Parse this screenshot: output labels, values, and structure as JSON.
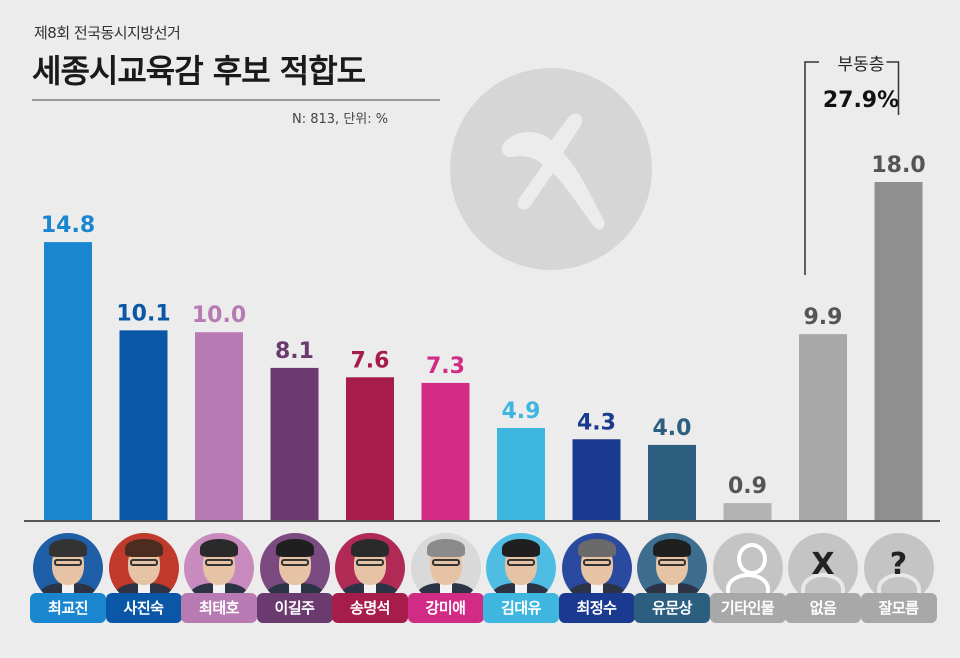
{
  "header": {
    "subtitle": "제8회 전국동시지방선거",
    "title": "세종시교육감  후보 적합도",
    "note": "N: 813, 단위: %"
  },
  "bracket": {
    "label": "부동층",
    "value": "27.9%"
  },
  "colors": {
    "background": "#ececec",
    "baseline": "#555555"
  },
  "chart_data": {
    "type": "bar",
    "title": "세종시교육감  후보 적합도",
    "ylim": [
      0,
      18.0
    ],
    "grid": false,
    "categories": [
      "최교진",
      "사진숙",
      "최태호",
      "이길주",
      "송명석",
      "강미애",
      "김대유",
      "최정수",
      "유문상",
      "기타인물",
      "없음",
      "잘모름"
    ],
    "values": [
      14.8,
      10.1,
      10.0,
      8.1,
      7.6,
      7.3,
      4.9,
      4.3,
      4.0,
      0.9,
      9.9,
      18.0
    ],
    "value_labels": [
      "14.8",
      "10.1",
      "10.0",
      "8.1",
      "7.6",
      "7.3",
      "4.9",
      "4.3",
      "4.0",
      "0.9",
      "9.9",
      "18.0"
    ],
    "bar_colors": [
      "#1a86d0",
      "#0a57a8",
      "#b77ab3",
      "#6b3a6e",
      "#a61c4a",
      "#d12b86",
      "#3fb6e0",
      "#1a3a8f",
      "#2c5e80",
      "#b3b3b3",
      "#a8a8a8",
      "#8f8f8f"
    ],
    "label_colors": [
      "#1a86d0",
      "#0a57a8",
      "#b77ab3",
      "#6b3a6e",
      "#a61c4a",
      "#d12b86",
      "#3fb6e0",
      "#1a3a8f",
      "#2c5e80",
      "#555555",
      "#555555",
      "#555555"
    ]
  },
  "candidates": [
    {
      "name": "최교진",
      "type": "person",
      "color": "#1a86d0",
      "bg": "#1f5fa8",
      "hair": "#333333"
    },
    {
      "name": "사진숙",
      "type": "person",
      "color": "#0a57a8",
      "bg": "#c0392b",
      "hair": "#4a2d1f"
    },
    {
      "name": "최태호",
      "type": "person",
      "color": "#b77ab3",
      "bg": "#c98ac0",
      "hair": "#2a2a2a"
    },
    {
      "name": "이길주",
      "type": "person",
      "color": "#6b3a6e",
      "bg": "#7a4a80",
      "hair": "#1f1f1f"
    },
    {
      "name": "송명석",
      "type": "person",
      "color": "#a61c4a",
      "bg": "#b02a55",
      "hair": "#2a2a2a"
    },
    {
      "name": "강미애",
      "type": "person",
      "color": "#d12b86",
      "bg": "#d9d9d9",
      "hair": "#8a8a8a"
    },
    {
      "name": "김대유",
      "type": "person",
      "color": "#3fb6e0",
      "bg": "#4fbde3",
      "hair": "#1f1f1f"
    },
    {
      "name": "최정수",
      "type": "person",
      "color": "#1a3a8f",
      "bg": "#2a4a9f",
      "hair": "#6a6a6a"
    },
    {
      "name": "유문상",
      "type": "person",
      "color": "#2c5e80",
      "bg": "#3d6e90",
      "hair": "#1f1f1f"
    },
    {
      "name": "기타인물",
      "type": "generic",
      "color": "#a8a8a8",
      "bg": "#c4c4c4",
      "symbol": ""
    },
    {
      "name": "없음",
      "type": "symbol",
      "color": "#a8a8a8",
      "bg": "#c4c4c4",
      "symbol": "X"
    },
    {
      "name": "잘모름",
      "type": "symbol",
      "color": "#a8a8a8",
      "bg": "#c4c4c4",
      "symbol": "?"
    }
  ]
}
